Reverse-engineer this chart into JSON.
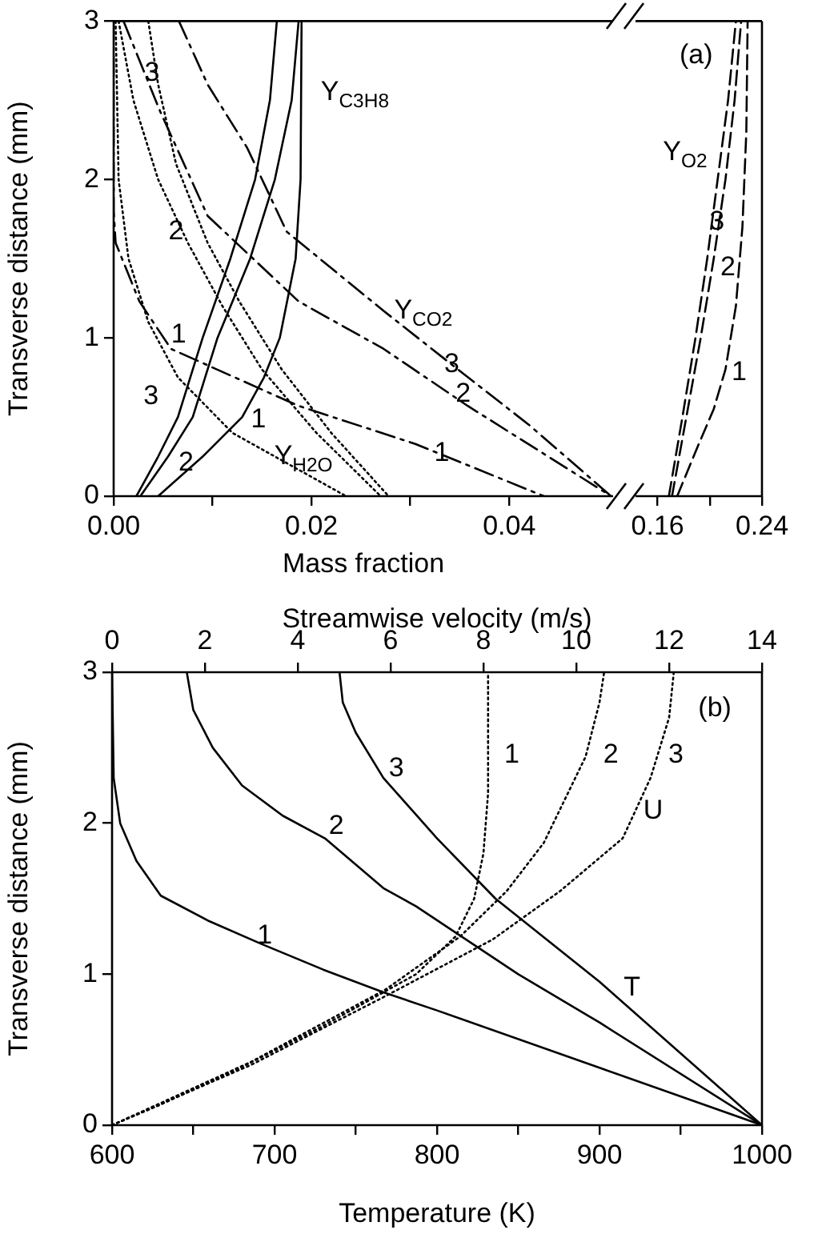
{
  "chart_data": [
    {
      "type": "line",
      "xlabel": "Mass fraction",
      "ylabel": "Transverse distance (mm)",
      "xlim": [
        0,
        0.0505
      ],
      "ylim": [
        0,
        3
      ],
      "xticks": [
        {
          "value": 0,
          "label": "0.00"
        },
        {
          "value": 0.01,
          "label": null
        },
        {
          "value": 0.02,
          "label": "0.02"
        },
        {
          "value": 0.03,
          "label": null
        },
        {
          "value": 0.04,
          "label": "0.04"
        }
      ],
      "yticks": [
        0,
        1,
        2,
        3
      ],
      "marker": "none",
      "series": [
        {
          "color": "#000000",
          "line_style": "solid",
          "x": [
            0.0045,
            0.009,
            0.013,
            0.0152,
            0.0168,
            0.0184,
            0.0189,
            0.019
          ],
          "values": [
            0,
            0.25,
            0.5,
            0.75,
            1,
            1.5,
            2,
            3
          ]
        },
        {
          "color": "#000000",
          "line_style": "solid",
          "x": [
            0.0027,
            0.0055,
            0.008,
            0.0105,
            0.0138,
            0.0163,
            0.018,
            0.0187
          ],
          "values": [
            0,
            0.25,
            0.5,
            1,
            1.5,
            2,
            2.5,
            3
          ]
        },
        {
          "color": "#000000",
          "line_style": "solid",
          "x": [
            0.0023,
            0.0045,
            0.0065,
            0.009,
            0.0118,
            0.0143,
            0.0158,
            0.0165
          ],
          "values": [
            0,
            0.25,
            0.5,
            1,
            1.5,
            2,
            2.5,
            3
          ]
        },
        {
          "color": "#000000",
          "line_style": "dotted",
          "x": [
            0.0002,
            0.0005,
            0.0015,
            0.0035,
            0.0065,
            0.012,
            0.0235
          ],
          "values": [
            3,
            2,
            1.5,
            1.1,
            0.75,
            0.4,
            0
          ]
        },
        {
          "color": "#000000",
          "line_style": "dotted",
          "x": [
            0.0005,
            0.002,
            0.0045,
            0.0075,
            0.011,
            0.015,
            0.0205,
            0.027
          ],
          "values": [
            3,
            2.5,
            2,
            1.6,
            1.2,
            0.8,
            0.4,
            0
          ]
        },
        {
          "color": "#000000",
          "line_style": "dotted",
          "x": [
            0.0035,
            0.0045,
            0.0063,
            0.0095,
            0.0127,
            0.017,
            0.022,
            0.0278
          ],
          "values": [
            3,
            2.6,
            2.1,
            1.6,
            1.23,
            0.8,
            0.4,
            0
          ]
        },
        {
          "color": "#000000",
          "line_style": "dashdot",
          "x": [
            0,
            0,
            0.0002,
            0.0026,
            0.0058,
            0.0187,
            0.0305,
            0.0435
          ],
          "values": [
            3,
            1.8,
            1.6,
            1.23,
            0.93,
            0.57,
            0.33,
            0
          ]
        },
        {
          "color": "#000000",
          "line_style": "dashdot",
          "x": [
            0.001,
            0.0047,
            0.0095,
            0.0187,
            0.0273,
            0.0358,
            0.0503
          ],
          "values": [
            3,
            2.43,
            1.77,
            1.23,
            0.93,
            0.57,
            0
          ]
        },
        {
          "color": "#000000",
          "line_style": "dashdot",
          "x": [
            0.0066,
            0.0095,
            0.0135,
            0.0175,
            0.0273,
            0.0342,
            0.042,
            0.0503
          ],
          "values": [
            3,
            2.6,
            2.2,
            1.67,
            1.17,
            0.83,
            0.45,
            0
          ]
        }
      ],
      "annotations": [
        "Y$_{C3H8}$",
        "Y$_{CO2}$",
        "Y$_{H2O}$",
        "3",
        "2",
        "1",
        "3",
        "2",
        "1",
        "3",
        "2",
        "1"
      ]
    },
    {
      "type": "line",
      "xlim": [
        0.143,
        0.24
      ],
      "ylim": [
        0,
        3
      ],
      "tick_labels": "x",
      "xticks": [
        {
          "value": 0.16,
          "label": "0.16"
        },
        {
          "value": 0.2,
          "label": null
        },
        {
          "value": 0.24,
          "label": "0.24"
        }
      ],
      "yticks": [
        0,
        1,
        2,
        3
      ],
      "marker": "none",
      "series": [
        {
          "color": "#000000",
          "line_style": "dashed",
          "x": [
            0.175,
            0.19,
            0.203,
            0.212,
            0.22,
            0.225,
            0.228,
            0.229
          ],
          "values": [
            0,
            0.3,
            0.55,
            0.8,
            1.2,
            1.7,
            2.3,
            3
          ]
        },
        {
          "color": "#000000",
          "line_style": "dashed",
          "x": [
            0.171,
            0.182,
            0.193,
            0.203,
            0.212,
            0.219,
            0.224
          ],
          "values": [
            0,
            0.5,
            1,
            1.5,
            2,
            2.5,
            3
          ]
        },
        {
          "color": "#000000",
          "line_style": "dashed",
          "x": [
            0.1686,
            0.179,
            0.189,
            0.198,
            0.206,
            0.214,
            0.22
          ],
          "values": [
            0,
            0.5,
            1,
            1.5,
            2,
            2.5,
            3
          ]
        }
      ],
      "annotations": [
        "(a)",
        "Y$_{O2}$",
        "3",
        "2",
        "1"
      ]
    },
    {
      "type": "line",
      "xlabel": "Temperature (K)",
      "ylabel": "Transverse distance (mm)",
      "x2label": "Streamwise velocity (m/s)",
      "xlim": [
        600,
        1000
      ],
      "ylim": [
        0,
        3
      ],
      "x2lim": [
        0,
        14
      ],
      "xticks": [
        600,
        {
          "value": 650,
          "label": null
        },
        700,
        {
          "value": 750,
          "label": null
        },
        800,
        {
          "value": 850,
          "label": null
        },
        900,
        {
          "value": 950,
          "label": null
        },
        1000
      ],
      "yticks": [
        0,
        1,
        2,
        3
      ],
      "x2ticks": [
        0,
        2,
        4,
        6,
        8,
        10,
        12,
        14
      ],
      "marker": "none",
      "series": [
        {
          "color": "#000000",
          "line_style": "solid",
          "x": [
            600,
            601,
            605,
            615,
            630,
            660,
            692,
            730,
            767,
            800,
            900,
            1000
          ],
          "values": [
            3,
            2.3,
            2,
            1.75,
            1.52,
            1.35,
            1.2,
            1.03,
            0.88,
            0.76,
            0.38,
            0
          ]
        },
        {
          "color": "#000000",
          "line_style": "solid",
          "x": [
            646,
            650,
            662,
            680,
            705,
            731,
            767,
            787,
            850,
            900,
            1000
          ],
          "values": [
            3,
            2.75,
            2.5,
            2.25,
            2.05,
            1.9,
            1.57,
            1.45,
            1,
            0.68,
            0
          ]
        },
        {
          "color": "#000000",
          "line_style": "solid",
          "x": [
            740,
            742,
            750,
            767,
            800,
            836,
            900,
            1000
          ],
          "values": [
            3,
            2.8,
            2.6,
            2.3,
            1.9,
            1.5,
            0.95,
            0
          ]
        },
        {
          "color": "#000000",
          "line_style": "dotted",
          "axis": "x2",
          "x": [
            0,
            1,
            2.76,
            4.5,
            6.55,
            7.4,
            7.8,
            8,
            8.1,
            8.1
          ],
          "values": [
            0,
            0.13,
            0.38,
            0.65,
            1,
            1.25,
            1.5,
            1.8,
            2.2,
            3
          ]
        },
        {
          "color": "#000000",
          "line_style": "dotted",
          "axis": "x2",
          "x": [
            0,
            3,
            5.9,
            7.5,
            8.5,
            9.3,
            10.2,
            10.5,
            10.6
          ],
          "values": [
            0,
            0.42,
            0.9,
            1.25,
            1.55,
            1.87,
            2.44,
            2.8,
            3
          ]
        },
        {
          "color": "#000000",
          "line_style": "dotted",
          "axis": "x2",
          "x": [
            0,
            3,
            5.86,
            8.2,
            9.65,
            11,
            11.6,
            12,
            12.1
          ],
          "values": [
            0,
            0.4,
            0.85,
            1.23,
            1.55,
            1.9,
            2.3,
            2.7,
            3
          ]
        }
      ],
      "annotations": [
        "(b)",
        "1",
        "2",
        "3",
        "U",
        "T",
        "1",
        "2",
        "3"
      ]
    }
  ]
}
